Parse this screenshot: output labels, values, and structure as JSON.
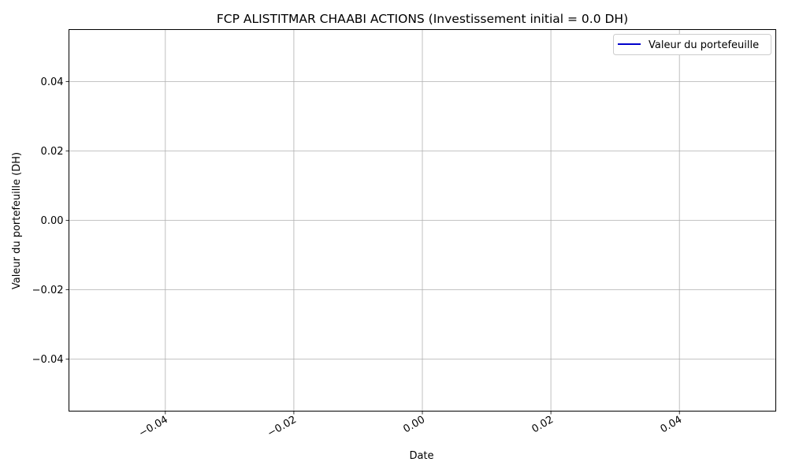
{
  "chart_data": {
    "type": "line",
    "title": "FCP ALISTITMAR CHAABI ACTIONS (Investissement initial = 0.0 DH)",
    "xlabel": "Date",
    "ylabel": "Valeur du portefeuille (DH)",
    "xlim": [
      -0.055,
      0.055
    ],
    "ylim": [
      -0.055,
      0.055
    ],
    "x_ticks": [
      -0.04,
      -0.02,
      0.0,
      0.02,
      0.04
    ],
    "x_tick_labels": [
      "−0.04",
      "−0.02",
      "0.00",
      "0.02",
      "0.04"
    ],
    "y_ticks": [
      0.04,
      0.02,
      0.0,
      -0.02,
      -0.04
    ],
    "y_tick_labels": [
      "0.04",
      "0.02",
      "0.00",
      "−0.02",
      "−0.04"
    ],
    "grid": true,
    "legend_position": "top-right",
    "series": [
      {
        "name": "Valeur du portefeuille",
        "color": "#0000cc",
        "x": [],
        "y": []
      }
    ]
  }
}
